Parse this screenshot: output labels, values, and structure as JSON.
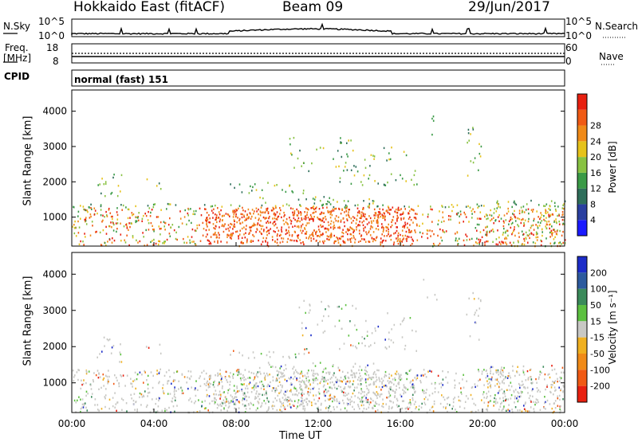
{
  "header": {
    "station": "Hokkaido East (fitACF)",
    "beam": "Beam 09",
    "date": "29/Jun/2017"
  },
  "side_labels": {
    "nsky": "N.Sky",
    "freq": "Freq.",
    "freq_unit": "[MHz]",
    "cpid": "CPID",
    "nsearch": "N.Search",
    "nave": "Nave",
    "nsky_ticks": [
      "10^5",
      "10^0"
    ],
    "freq_ticks": [
      "18",
      "8"
    ],
    "nsearch_ticks": [
      "10^5",
      "10^0"
    ],
    "nave_ticks": [
      "60",
      "0"
    ]
  },
  "cpid_text": "normal (fast) 151",
  "chart_data": [
    {
      "type": "heatmap",
      "name": "power",
      "ylabel": "Slant Range [km]",
      "xlabel": "",
      "y_ticks": [
        1000,
        2000,
        3000,
        4000
      ],
      "ylim": [
        180,
        4600
      ],
      "colorbar_label": "Power [dB]",
      "colorbar_ticks": [
        4,
        8,
        12,
        16,
        20,
        24,
        28
      ],
      "colors": [
        "#1a1aff",
        "#2a3fa0",
        "#2e6e5a",
        "#3a9a46",
        "#88c242",
        "#e6c21a",
        "#f08a18",
        "#f05a14",
        "#e82010"
      ]
    },
    {
      "type": "heatmap",
      "name": "velocity",
      "ylabel": "Slant Range [km]",
      "xlabel": "Time UT",
      "y_ticks": [
        1000,
        2000,
        3000,
        4000
      ],
      "ylim": [
        180,
        4600
      ],
      "x_ticks": [
        "00:00",
        "04:00",
        "08:00",
        "12:00",
        "16:00",
        "20:00",
        "00:00"
      ],
      "colorbar_label": "Velocity [m s⁻¹]",
      "colorbar_ticks": [
        200,
        100,
        50,
        15,
        -15,
        -50,
        -100,
        -200
      ],
      "colors": [
        "#1c2cc8",
        "#2c5a9e",
        "#3a8a5a",
        "#5cc040",
        "#c8c8c4",
        "#f0b020",
        "#f08a18",
        "#f05a14",
        "#e82010"
      ]
    }
  ]
}
